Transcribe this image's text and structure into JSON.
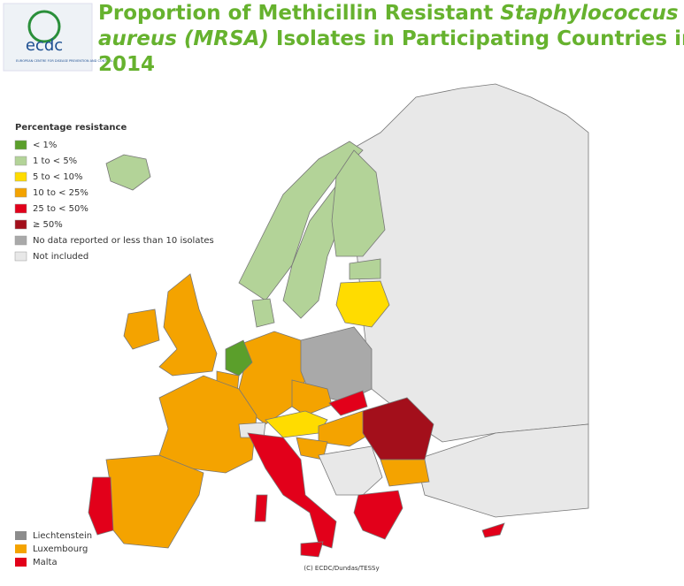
{
  "logo": {
    "name": "ecdc",
    "subtitle": "EUROPEAN CENTRE FOR DISEASE PREVENTION AND CONTROL"
  },
  "title": {
    "line1": "Proportion of Methicillin Resistant ",
    "line1_italic": "Staphylococcus",
    "line2_italic": "aureus (MRSA)",
    "line2": " Isolates in Participating Countries in",
    "line3": "2014"
  },
  "legend": {
    "title": "Percentage resistance",
    "items": [
      {
        "label": "< 1%",
        "color": "#5b9f2b"
      },
      {
        "label": "1 to < 5%",
        "color": "#b3d398"
      },
      {
        "label": "5 to < 10%",
        "color": "#ffdc00"
      },
      {
        "label": "10 to < 25%",
        "color": "#f4a300"
      },
      {
        "label": "25 to < 50%",
        "color": "#e2001a"
      },
      {
        "label": "≥ 50%",
        "color": "#a30f1b"
      },
      {
        "label": "No data reported or less than 10 isolates",
        "color": "#a9a9a9"
      },
      {
        "label": "Not included",
        "color": "#e8e8e8"
      }
    ]
  },
  "small_countries": [
    {
      "label": "Liechtenstein",
      "color": "#8c8c8c"
    },
    {
      "label": "Luxembourg",
      "color": "#f4a300"
    },
    {
      "label": "Malta",
      "color": "#e2001a"
    }
  ],
  "credit": "(C) ECDC/Dundas/TESSy"
}
